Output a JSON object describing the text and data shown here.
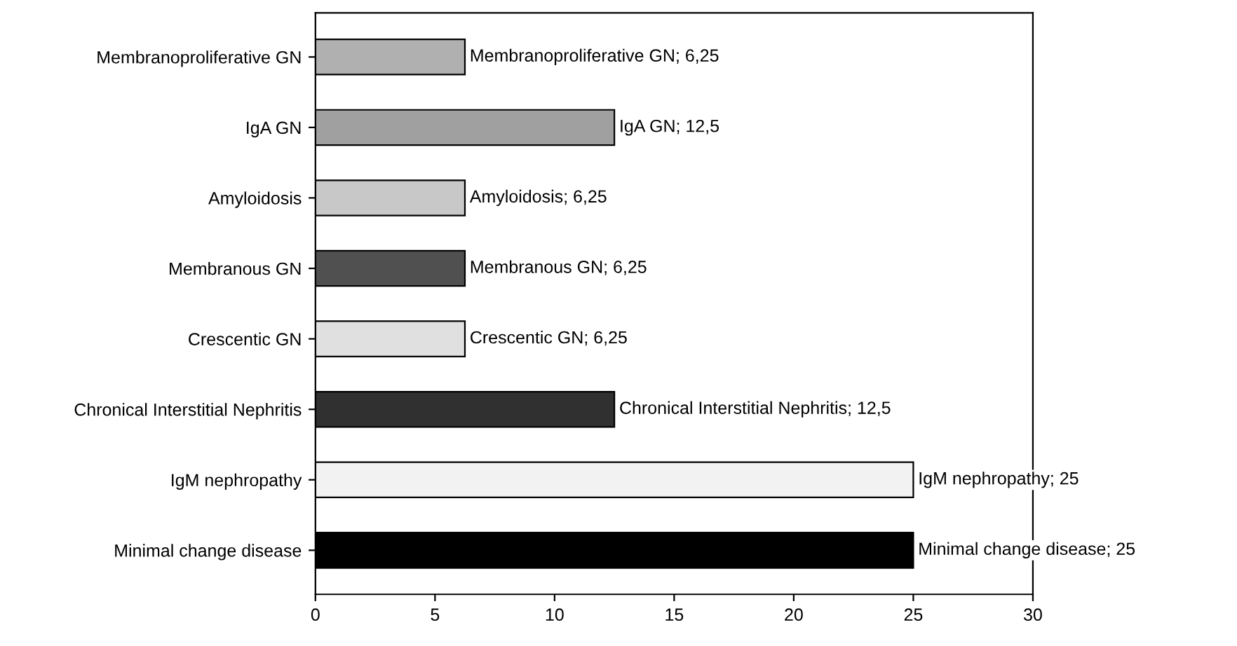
{
  "chart_data": {
    "type": "bar",
    "orientation": "horizontal",
    "categories": [
      "Membranoproliferative GN",
      "IgA GN",
      "Amyloidosis",
      "Membranous GN",
      "Crescentic GN",
      "Chronical Interstitial Nephritis",
      "IgM nephropathy",
      "Minimal change disease"
    ],
    "values": [
      6.25,
      12.5,
      6.25,
      6.25,
      6.25,
      12.5,
      25,
      25
    ],
    "colors": [
      "#b0b0b0",
      "#a0a0a0",
      "#c8c8c8",
      "#505050",
      "#e0e0e0",
      "#303030",
      "#f2f2f2",
      "#000000"
    ],
    "value_labels": [
      "Membranoproliferative GN; 6,25",
      "IgA GN; 12,5",
      "Amyloidosis; 6,25",
      "Membranous GN; 6,25",
      "Crescentic GN; 6,25",
      "Chronical Interstitial Nephritis; 12,5",
      "IgM nephropathy; 25",
      "Minimal change disease; 25"
    ],
    "xlim": [
      0,
      30
    ],
    "xticks": [
      0,
      5,
      10,
      15,
      20,
      25,
      30
    ],
    "grid": false,
    "legend": false
  }
}
